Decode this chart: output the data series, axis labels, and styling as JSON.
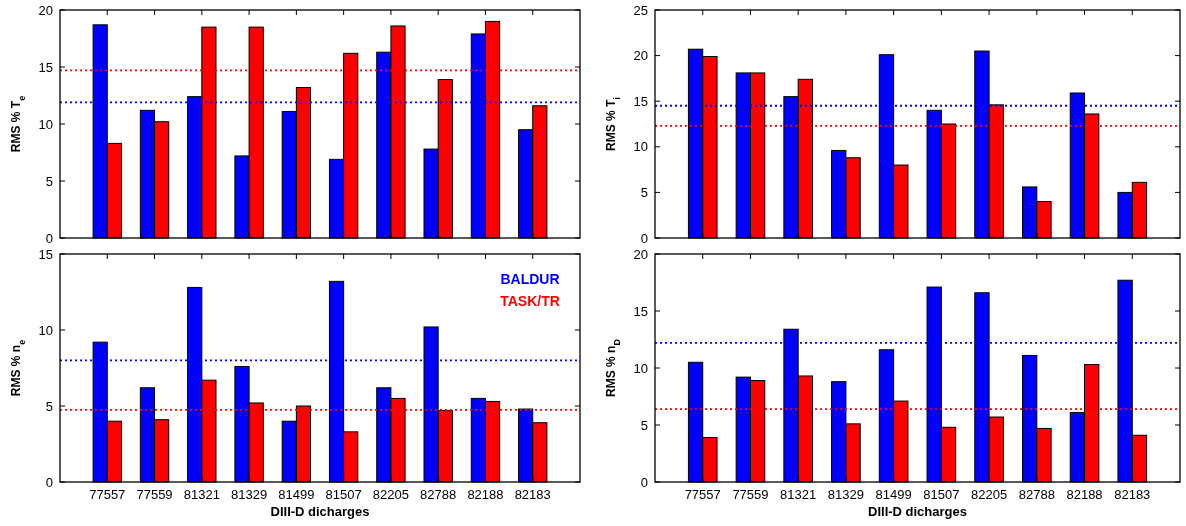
{
  "chart_data": [
    {
      "type": "bar",
      "ylabel": "RMS % T$_{e}$",
      "categories": [
        "77557",
        "77559",
        "81321",
        "81329",
        "81499",
        "81507",
        "82205",
        "82788",
        "82188",
        "82183"
      ],
      "tick_labels": "y",
      "ylim": [
        0,
        20
      ],
      "yticks": [
        0,
        5,
        10,
        15,
        20
      ],
      "grid": false,
      "legend": false,
      "series": [
        {
          "color": "#0000ff",
          "values": [
            18.7,
            11.2,
            12.4,
            7.2,
            11.1,
            6.9,
            16.3,
            7.8,
            17.9,
            9.5
          ]
        },
        {
          "color": "#ff0000",
          "values": [
            8.3,
            10.2,
            18.5,
            18.5,
            13.2,
            16.2,
            18.6,
            13.9,
            19.0,
            11.6
          ]
        }
      ],
      "ref_lines": [
        {
          "axis": "y",
          "value": 14.7,
          "color": "#ff0000",
          "line_style": "dotted"
        },
        {
          "axis": "y",
          "value": 11.9,
          "color": "#0000ff",
          "line_style": "dotted"
        }
      ]
    },
    {
      "type": "bar",
      "ylabel": "RMS % T$_{i}$",
      "categories": [
        "77557",
        "77559",
        "81321",
        "81329",
        "81499",
        "81507",
        "82205",
        "82788",
        "82188",
        "82183"
      ],
      "tick_labels": "y",
      "ylim": [
        0,
        25
      ],
      "yticks": [
        0,
        5,
        10,
        15,
        20,
        25
      ],
      "grid": false,
      "legend": false,
      "series": [
        {
          "color": "#0000ff",
          "values": [
            20.7,
            18.1,
            15.5,
            9.6,
            20.1,
            14.0,
            20.5,
            5.6,
            15.9,
            5.0
          ]
        },
        {
          "color": "#ff0000",
          "values": [
            19.9,
            18.1,
            17.4,
            8.8,
            8.0,
            12.5,
            14.6,
            4.0,
            13.6,
            6.1
          ]
        }
      ],
      "ref_lines": [
        {
          "axis": "y",
          "value": 14.5,
          "color": "#0000ff",
          "line_style": "dotted"
        },
        {
          "axis": "y",
          "value": 12.3,
          "color": "#ff0000",
          "line_style": "dotted"
        }
      ]
    },
    {
      "type": "bar",
      "ylabel": "RMS % n$_{e}$",
      "xlabel": "DIII-D dicharges",
      "categories": [
        "77557",
        "77559",
        "81321",
        "81329",
        "81499",
        "81507",
        "82205",
        "82788",
        "82188",
        "82183"
      ],
      "ylim": [
        0,
        15
      ],
      "yticks": [
        0,
        5,
        10,
        15
      ],
      "grid": false,
      "legend": "top right",
      "series": [
        {
          "name": "BALDUR",
          "color": "#0000ff",
          "values": [
            9.2,
            6.2,
            12.8,
            7.6,
            4.0,
            13.2,
            6.2,
            10.2,
            5.5,
            4.8
          ]
        },
        {
          "name": "TASK/TR",
          "color": "#ff0000",
          "values": [
            4.0,
            4.1,
            6.7,
            5.2,
            5.0,
            3.3,
            5.5,
            4.7,
            5.3,
            3.9
          ]
        }
      ],
      "ref_lines": [
        {
          "axis": "y",
          "value": 8.0,
          "color": "#0000ff",
          "line_style": "dotted"
        },
        {
          "axis": "y",
          "value": 4.75,
          "color": "#ff0000",
          "line_style": "dotted"
        }
      ]
    },
    {
      "type": "bar",
      "ylabel": "RMS % n$_{D}$",
      "xlabel": "DIII-D dicharges",
      "categories": [
        "77557",
        "77559",
        "81321",
        "81329",
        "81499",
        "81507",
        "82205",
        "82788",
        "82188",
        "82183"
      ],
      "ylim": [
        0,
        20
      ],
      "yticks": [
        0,
        5,
        10,
        15,
        20
      ],
      "grid": false,
      "legend": false,
      "series": [
        {
          "color": "#0000ff",
          "values": [
            10.5,
            9.2,
            13.4,
            8.8,
            11.6,
            17.1,
            16.6,
            11.1,
            6.1,
            17.7
          ]
        },
        {
          "color": "#ff0000",
          "values": [
            3.9,
            8.9,
            9.3,
            5.1,
            7.1,
            4.8,
            5.7,
            4.7,
            10.3,
            4.1
          ]
        }
      ],
      "ref_lines": [
        {
          "axis": "y",
          "value": 12.2,
          "color": "#0000ff",
          "line_style": "dotted"
        },
        {
          "axis": "y",
          "value": 6.4,
          "color": "#ff0000",
          "line_style": "dotted"
        }
      ]
    }
  ]
}
